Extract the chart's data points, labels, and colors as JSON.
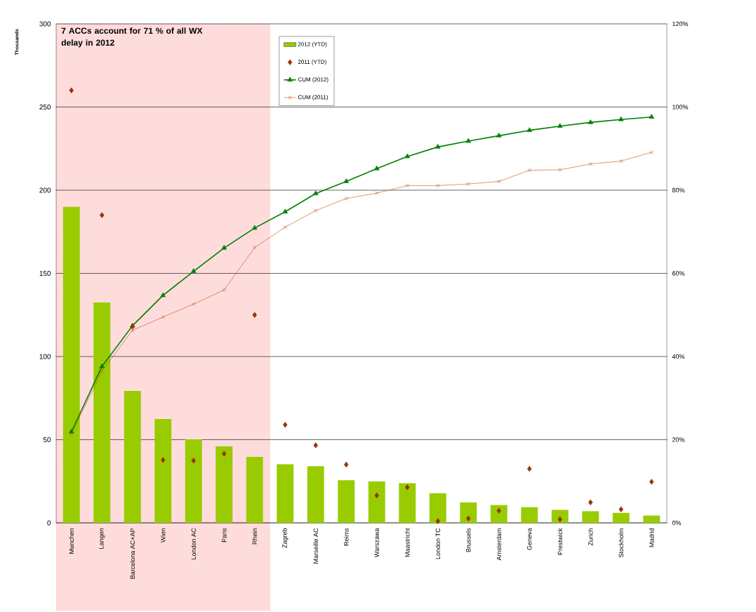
{
  "chart_data": {
    "type": "bar",
    "ylabel": "Thousands",
    "categories": [
      "Munchen",
      "Langen",
      "Barcelona AC+AP",
      "Wien",
      "London AC",
      "Paris",
      "Rhein",
      "Zagreb",
      "Marseille AC",
      "Reims",
      "Warszawa",
      "Maastricht",
      "London TC",
      "Brussels",
      "Amsterdam",
      "Geneva",
      "Prestwick",
      "Zurich",
      "Stockholm",
      "Madrid"
    ],
    "series": [
      {
        "name": "2012 (YTD)",
        "type": "bar",
        "color": "#99cc00",
        "values": [
          190,
          132.5,
          79.3,
          62.4,
          50.2,
          46,
          39.7,
          35.2,
          34.1,
          25.6,
          24.9,
          23.8,
          17.8,
          12.3,
          10.7,
          9.4,
          7.8,
          7.0,
          6.0,
          4.4
        ]
      },
      {
        "name": "2011 (YTD)",
        "type": "scatter",
        "marker": "diamond",
        "color": "#993300",
        "values": [
          260,
          185,
          118,
          37.8,
          37.4,
          41.6,
          125,
          59,
          46.6,
          35,
          16.5,
          21.4,
          1,
          2.6,
          7.3,
          32.5,
          2.1,
          12.3,
          8.1,
          24.7
        ]
      },
      {
        "name": "CUM (2012)",
        "type": "line",
        "axis": "y2",
        "marker": "triangle",
        "color": "#008000",
        "values": [
          21.9,
          37.6,
          47.4,
          54.7,
          60.5,
          66.1,
          70.9,
          74.8,
          79.2,
          82.1,
          85.2,
          88.1,
          90.4,
          91.8,
          93.1,
          94.4,
          95.4,
          96.3,
          97.0,
          97.6
        ]
      },
      {
        "name": "CUM (2011)",
        "type": "line",
        "axis": "y2",
        "marker": "cross",
        "color": "#c0501e",
        "values": [
          21.4,
          36.5,
          46.3,
          49.5,
          52.6,
          56.0,
          66.2,
          71.1,
          75.1,
          78.0,
          79.3,
          81.1,
          81.1,
          81.5,
          82.1,
          84.8,
          84.9,
          86.3,
          87.0,
          89.1
        ]
      }
    ],
    "ylim": [
      0,
      300
    ],
    "yticks": [
      0,
      50,
      100,
      150,
      200,
      250,
      300
    ],
    "y2lim": [
      0,
      120
    ],
    "y2ticks": [
      {
        "value": 0,
        "label": "0%"
      },
      {
        "value": 20,
        "label": "20%"
      },
      {
        "value": 40,
        "label": "40%"
      },
      {
        "value": 60,
        "label": "60%"
      },
      {
        "value": 80,
        "label": "80%"
      },
      {
        "value": 100,
        "label": "100%"
      },
      {
        "value": 120,
        "label": "120%"
      }
    ],
    "grid": "y",
    "legend": "top",
    "bands": [
      {
        "axis": "x",
        "from": "Munchen",
        "to": "Rhein",
        "label": "7 ACCs account for 71 % of all WX delay in 2012",
        "color": "#ffdcdc"
      }
    ]
  }
}
